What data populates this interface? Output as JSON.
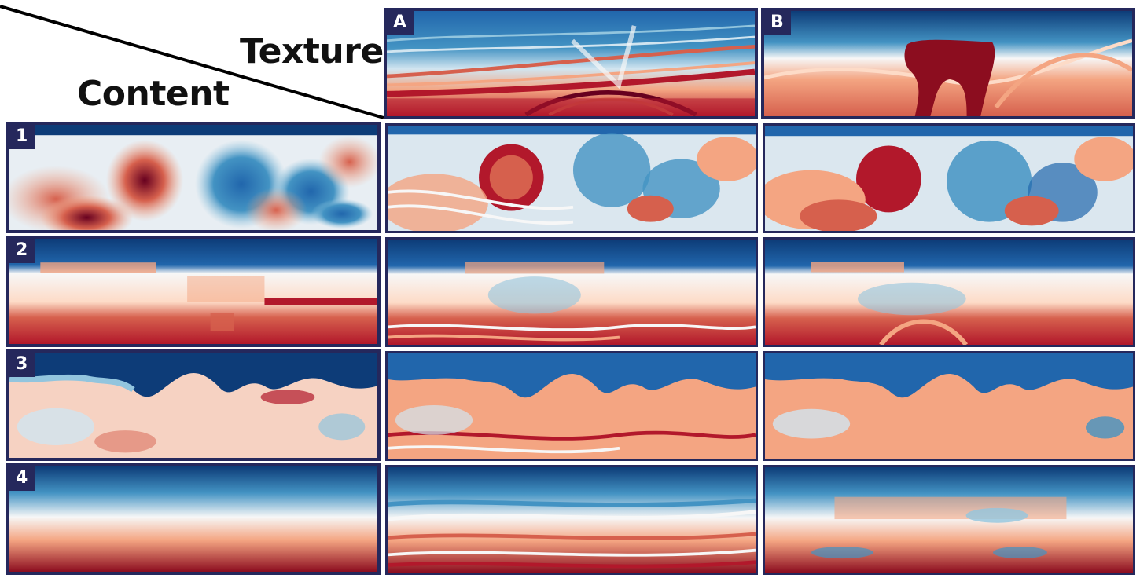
{
  "header": {
    "texture_label": "Texture",
    "content_label": "Content"
  },
  "texture_sources": [
    {
      "label": "A"
    },
    {
      "label": "B"
    }
  ],
  "content_rows": [
    {
      "label": "1"
    },
    {
      "label": "2"
    },
    {
      "label": "3"
    },
    {
      "label": "4"
    }
  ],
  "colors": {
    "frame": "#25285c",
    "deep_red": "#8c0d1f",
    "red": "#d6604d",
    "salmon": "#f4a582",
    "white": "#f7f7f7",
    "light_blue": "#92c5de",
    "blue": "#4393c3",
    "deep_blue": "#0d3c78"
  }
}
